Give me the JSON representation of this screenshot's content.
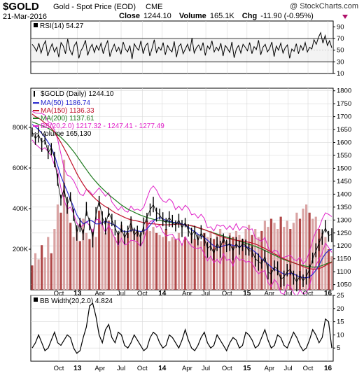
{
  "header": {
    "symbol": "$GOLD",
    "name": "Gold - Spot Price (EOD)",
    "exchange": "CME",
    "watermark": "@ StockCharts.com",
    "date": "21-Mar-2016",
    "close_label": "Close",
    "close_value": "1244.10",
    "volume_label": "Volume",
    "volume_value": "165.1K",
    "chg_label": "Chg",
    "chg_value": "-11.90 (-0.95%)"
  },
  "colors": {
    "price": "#000000",
    "ma50": "#2a2ad0",
    "ma150": "#c0102a",
    "ma200": "#1f7a1f",
    "bb": "#e020c8",
    "volume_up": "#d9a3a3",
    "volume_down": "#b04848",
    "grid": "#d8d8d8",
    "rsi_fill": "#e8e8e8"
  },
  "chart_data": [
    {
      "type": "line",
      "panel": "rsi",
      "label": "RSI(14) 54.27",
      "ylim": [
        10,
        100
      ],
      "yticks": [
        10,
        30,
        50,
        70,
        90
      ],
      "reference_lines": [
        30,
        70
      ],
      "series": [
        {
          "name": "RSI(14)",
          "values": [
            60,
            55,
            48,
            62,
            45,
            58,
            66,
            40,
            52,
            61,
            47,
            55,
            38,
            63,
            57,
            44,
            69,
            50,
            42,
            58,
            64,
            36,
            49,
            56,
            67,
            41,
            53,
            60,
            46,
            58,
            50,
            62,
            44,
            57,
            66,
            39,
            51,
            60,
            48,
            55,
            43,
            64,
            52,
            47,
            58,
            35,
            61,
            54,
            50,
            66,
            44,
            57,
            62,
            40,
            53,
            68,
            46,
            55,
            50,
            63,
            42,
            58,
            51,
            47,
            65,
            38,
            56,
            61,
            44,
            52,
            60,
            48,
            71,
            45,
            54,
            59,
            50,
            63,
            41,
            57,
            52,
            66,
            47,
            55,
            49,
            62,
            40,
            58,
            53,
            46,
            64,
            37,
            52,
            58,
            45,
            60,
            55,
            49,
            63,
            44,
            56,
            51,
            67,
            42,
            55,
            60,
            47,
            53,
            64,
            39,
            57,
            50,
            62,
            45,
            54,
            59,
            36,
            52,
            48,
            61,
            44,
            58,
            50,
            63,
            47,
            55,
            52,
            68,
            60,
            72,
            80,
            62,
            75,
            58,
            66,
            54
          ]
        }
      ]
    },
    {
      "type": "line",
      "panel": "price",
      "title": "$GOLD (Daily) 1244.10",
      "ylim": [
        1030,
        1810
      ],
      "yticks": [
        1050,
        1100,
        1150,
        1200,
        1250,
        1300,
        1350,
        1400,
        1450,
        1500,
        1550,
        1600,
        1650,
        1700,
        1750,
        1800
      ],
      "volume_ticks": [
        "200K",
        "400K",
        "600K",
        "800K"
      ],
      "volume_ylim": [
        0,
        1000
      ],
      "x_ticks": [
        "Oct",
        "13",
        "Apr",
        "Jul",
        "Oct",
        "14",
        "Apr",
        "Jul",
        "Oct",
        "15",
        "Apr",
        "Jul",
        "Oct",
        "16"
      ],
      "legend": [
        {
          "key": "ma50",
          "label": "MA(50) 1186.74"
        },
        {
          "key": "ma150",
          "label": "MA(150) 1136.33"
        },
        {
          "key": "ma200",
          "label": "MA(200) 1137.61"
        },
        {
          "key": "bb",
          "label": "BB(20,2.0) 1217.32 - 1247.41 - 1277.49"
        },
        {
          "key": "volume",
          "label": "Volume 165,130"
        }
      ],
      "series": [
        {
          "name": "$GOLD (Daily)",
          "values": [
            1640,
            1615,
            1630,
            1600,
            1610,
            1560,
            1580,
            1540,
            1450,
            1380,
            1420,
            1360,
            1390,
            1320,
            1250,
            1290,
            1240,
            1340,
            1290,
            1230,
            1320,
            1375,
            1310,
            1280,
            1330,
            1300,
            1270,
            1240,
            1270,
            1230,
            1260,
            1290,
            1240,
            1260,
            1230,
            1280,
            1310,
            1340,
            1360,
            1330,
            1320,
            1300,
            1290,
            1310,
            1290,
            1280,
            1300,
            1270,
            1290,
            1260,
            1240,
            1260,
            1220,
            1250,
            1230,
            1190,
            1200,
            1170,
            1210,
            1190,
            1230,
            1200,
            1210,
            1180,
            1210,
            1190,
            1210,
            1200,
            1180,
            1180,
            1150,
            1140,
            1130,
            1160,
            1100,
            1090,
            1120,
            1110,
            1070,
            1080,
            1100,
            1110,
            1080,
            1060,
            1085,
            1065,
            1080,
            1110,
            1150,
            1180,
            1210,
            1240,
            1270,
            1240,
            1244
          ]
        },
        {
          "name": "MA(50)",
          "values": [
            1670,
            1660,
            1650,
            1635,
            1620,
            1600,
            1580,
            1550,
            1510,
            1470,
            1440,
            1410,
            1380,
            1350,
            1320,
            1300,
            1285,
            1290,
            1300,
            1295,
            1285,
            1285,
            1290,
            1295,
            1290,
            1285,
            1280,
            1270,
            1260,
            1255,
            1255,
            1260,
            1262,
            1258,
            1256,
            1258,
            1265,
            1280,
            1295,
            1305,
            1310,
            1305,
            1298,
            1295,
            1292,
            1290,
            1288,
            1285,
            1280,
            1272,
            1262,
            1255,
            1245,
            1238,
            1232,
            1222,
            1210,
            1200,
            1195,
            1195,
            1200,
            1203,
            1205,
            1202,
            1200,
            1198,
            1200,
            1198,
            1192,
            1185,
            1176,
            1164,
            1150,
            1140,
            1130,
            1118,
            1108,
            1105,
            1098,
            1090,
            1090,
            1095,
            1092,
            1085,
            1080,
            1078,
            1076,
            1080,
            1090,
            1105,
            1125,
            1150,
            1170,
            1182,
            1187
          ]
        },
        {
          "name": "MA(150)",
          "values": [
            1710,
            1700,
            1695,
            1685,
            1675,
            1665,
            1655,
            1640,
            1620,
            1600,
            1578,
            1555,
            1530,
            1505,
            1480,
            1458,
            1438,
            1420,
            1405,
            1392,
            1380,
            1370,
            1360,
            1352,
            1345,
            1336,
            1328,
            1322,
            1316,
            1310,
            1305,
            1301,
            1298,
            1296,
            1293,
            1290,
            1288,
            1286,
            1285,
            1284,
            1283,
            1282,
            1281,
            1282,
            1283,
            1284,
            1284,
            1283,
            1282,
            1280,
            1278,
            1275,
            1271,
            1267,
            1263,
            1258,
            1253,
            1248,
            1243,
            1238,
            1233,
            1230,
            1227,
            1224,
            1222,
            1220,
            1218,
            1216,
            1214,
            1211,
            1207,
            1202,
            1196,
            1190,
            1183,
            1176,
            1169,
            1163,
            1156,
            1150,
            1145,
            1140,
            1135,
            1130,
            1125,
            1120,
            1115,
            1112,
            1110,
            1110,
            1112,
            1117,
            1124,
            1131,
            1136
          ]
        },
        {
          "name": "MA(200)",
          "values": [
            1680,
            1675,
            1670,
            1665,
            1660,
            1655,
            1648,
            1640,
            1630,
            1620,
            1608,
            1595,
            1580,
            1565,
            1548,
            1530,
            1512,
            1495,
            1478,
            1462,
            1448,
            1434,
            1422,
            1410,
            1398,
            1388,
            1378,
            1368,
            1358,
            1350,
            1342,
            1336,
            1330,
            1324,
            1319,
            1314,
            1310,
            1306,
            1303,
            1300,
            1298,
            1296,
            1294,
            1292,
            1290,
            1288,
            1286,
            1284,
            1282,
            1280,
            1277,
            1274,
            1270,
            1266,
            1262,
            1258,
            1254,
            1250,
            1246,
            1242,
            1238,
            1234,
            1230,
            1226,
            1222,
            1218,
            1214,
            1210,
            1206,
            1202,
            1198,
            1193,
            1188,
            1182,
            1176,
            1170,
            1164,
            1158,
            1152,
            1147,
            1142,
            1138,
            1134,
            1130,
            1127,
            1124,
            1121,
            1119,
            1118,
            1118,
            1120,
            1124,
            1129,
            1134,
            1138
          ]
        },
        {
          "name": "BB(20,2.0)",
          "values": [
            1700,
            1690,
            1685,
            1680,
            1670,
            1660,
            1650,
            1620,
            1580,
            1520,
            1480,
            1450,
            1440,
            1420,
            1390,
            1380,
            1370,
            1390,
            1380,
            1360,
            1390,
            1400,
            1380,
            1360,
            1370,
            1350,
            1330,
            1310,
            1320,
            1300,
            1310,
            1330,
            1310,
            1310,
            1300,
            1330,
            1360,
            1390,
            1400,
            1380,
            1370,
            1350,
            1340,
            1350,
            1335,
            1320,
            1330,
            1310,
            1325,
            1310,
            1300,
            1300,
            1280,
            1290,
            1270,
            1250,
            1250,
            1230,
            1250,
            1240,
            1260,
            1240,
            1250,
            1230,
            1250,
            1240,
            1250,
            1245,
            1230,
            1230,
            1210,
            1200,
            1190,
            1200,
            1160,
            1150,
            1160,
            1150,
            1120,
            1120,
            1140,
            1140,
            1120,
            1110,
            1120,
            1110,
            1120,
            1150,
            1190,
            1220,
            1250,
            1280,
            1300,
            1290,
            1277
          ]
        },
        {
          "name": "Volume",
          "values": [
            120,
            180,
            150,
            220,
            160,
            260,
            180,
            300,
            420,
            380,
            640,
            420,
            330,
            260,
            300,
            240,
            350,
            280,
            250,
            300,
            260,
            390,
            320,
            280,
            340,
            300,
            260,
            280,
            320,
            270,
            280,
            350,
            300,
            290,
            260,
            300,
            340,
            290,
            310,
            280,
            270,
            260,
            300,
            240,
            260,
            250,
            280,
            230,
            260,
            240,
            270,
            250,
            260,
            240,
            280,
            260,
            290,
            250,
            270,
            300,
            260,
            240,
            280,
            260,
            290,
            270,
            250,
            300,
            320,
            270,
            300,
            260,
            290,
            340,
            310,
            350,
            330,
            300,
            360,
            310,
            340,
            300,
            330,
            380,
            350,
            400,
            420,
            380,
            350,
            360,
            300,
            280,
            260,
            200,
            165
          ]
        }
      ]
    },
    {
      "type": "line",
      "panel": "bbwidth",
      "label": "BB Width(20,2.0) 4.824",
      "ylim": [
        0,
        25
      ],
      "yticks": [
        5,
        10,
        15,
        20,
        25
      ],
      "x_ticks": [
        "Oct",
        "13",
        "Apr",
        "Jul",
        "Oct",
        "14",
        "Apr",
        "Jul",
        "Oct",
        "15",
        "Apr",
        "Jul",
        "Oct",
        "16"
      ],
      "series": [
        {
          "name": "BB Width(20,2.0)",
          "values": [
            5,
            7,
            10,
            7,
            4,
            5,
            8,
            11,
            7,
            6,
            8,
            10,
            9,
            5,
            3,
            4,
            9,
            13,
            21,
            22,
            17,
            10,
            7,
            12,
            14,
            9,
            7,
            11,
            10,
            6,
            5,
            7,
            10,
            8,
            6,
            4,
            5,
            9,
            11,
            10,
            7,
            5,
            6,
            10,
            9,
            7,
            5,
            8,
            12,
            8,
            5,
            4,
            6,
            9,
            11,
            7,
            5,
            6,
            10,
            8,
            6,
            4,
            7,
            9,
            8,
            5,
            6,
            11,
            10,
            8,
            5,
            6,
            9,
            12,
            8,
            5,
            6,
            10,
            9,
            6,
            5,
            8,
            11,
            9,
            6,
            4,
            5,
            8,
            12,
            10,
            7,
            9,
            16,
            15,
            5
          ]
        }
      ]
    }
  ]
}
